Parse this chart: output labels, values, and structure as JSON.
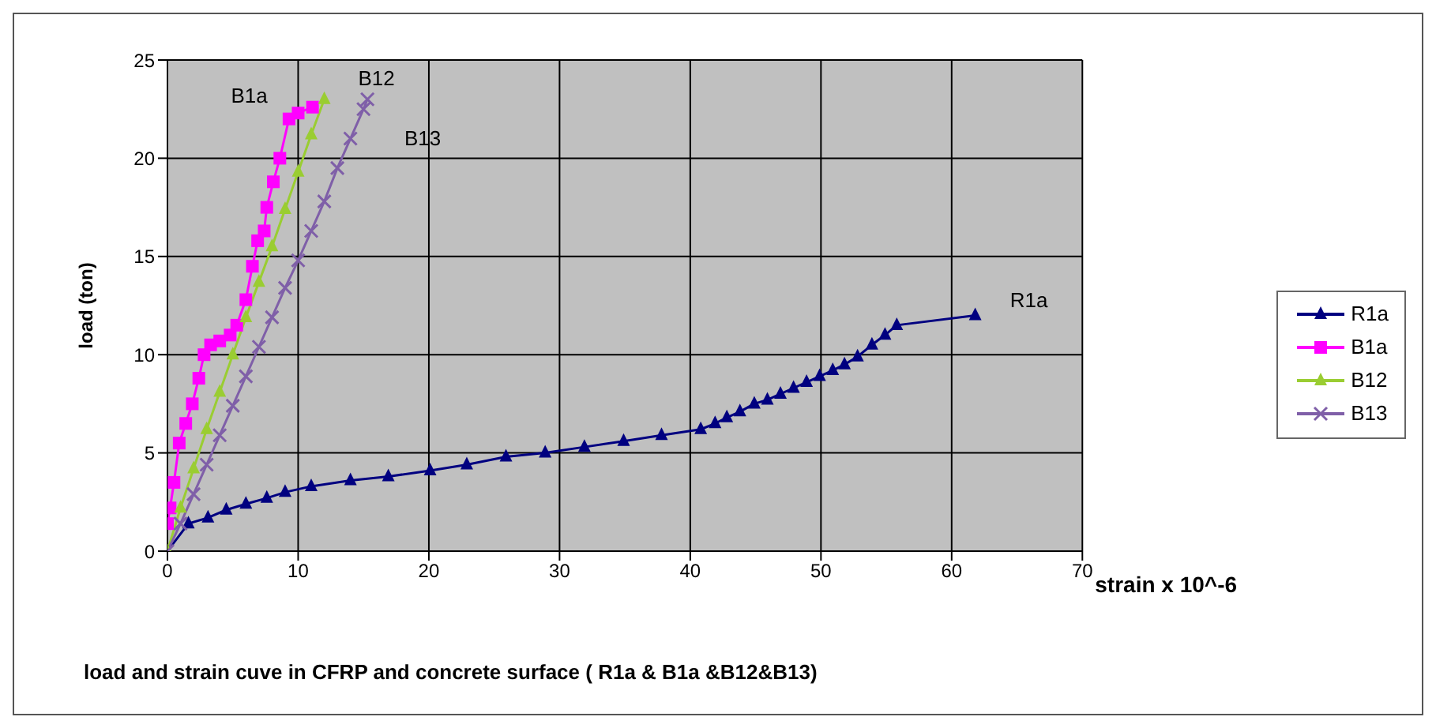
{
  "chart_data": {
    "type": "line",
    "title": "load and  strain cuve in CFRP and concrete surface  ( R1a & B1a &B12&B13)",
    "xlabel": "strain x 10^-6",
    "ylabel": "load (ton)",
    "xlim": [
      0,
      70
    ],
    "xticks": [
      0,
      10,
      20,
      30,
      40,
      50,
      60,
      70
    ],
    "ylim": [
      0,
      25
    ],
    "yticks": [
      0,
      5,
      10,
      15,
      20,
      25
    ],
    "grid": true,
    "legend": "right",
    "series": [
      {
        "name": "R1a",
        "color": "#000080",
        "marker": "triangle",
        "x": [
          0,
          1.6,
          3.1,
          4.5,
          6.0,
          7.6,
          9.0,
          11.0,
          14.0,
          16.9,
          20.1,
          22.9,
          25.9,
          28.9,
          31.9,
          34.9,
          37.8,
          40.8,
          41.9,
          42.8,
          43.8,
          44.9,
          45.9,
          46.9,
          47.9,
          48.9,
          49.9,
          50.9,
          51.8,
          52.8,
          53.9,
          54.9,
          55.8,
          61.8
        ],
        "values": [
          0,
          1.4,
          1.7,
          2.1,
          2.4,
          2.7,
          3.0,
          3.3,
          3.6,
          3.8,
          4.1,
          4.4,
          4.8,
          5.0,
          5.3,
          5.6,
          5.9,
          6.2,
          6.5,
          6.8,
          7.1,
          7.5,
          7.7,
          8.0,
          8.3,
          8.6,
          8.9,
          9.2,
          9.5,
          9.9,
          10.5,
          11.0,
          11.5,
          12.0
        ]
      },
      {
        "name": "B1a",
        "color": "#ff00ff",
        "marker": "square",
        "x": [
          0,
          0.2,
          0.5,
          0.9,
          1.4,
          1.9,
          2.4,
          2.8,
          3.3,
          4.0,
          4.8,
          5.3,
          6.0,
          6.5,
          6.9,
          7.4,
          7.6,
          8.1,
          8.6,
          9.3,
          10,
          11.1
        ],
        "values": [
          1.4,
          2.2,
          3.5,
          5.5,
          6.5,
          7.5,
          8.8,
          10,
          10.5,
          10.7,
          11.0,
          11.5,
          12.8,
          14.5,
          15.8,
          16.3,
          17.5,
          18.8,
          20,
          22,
          22.3,
          22.6
        ]
      },
      {
        "name": "B12",
        "color": "#9acd32",
        "marker": "triangle",
        "x": [
          0,
          1,
          2,
          3,
          4,
          5,
          6,
          7,
          8,
          9,
          10,
          11,
          12
        ],
        "values": [
          0,
          2.2,
          4.2,
          6.2,
          8.1,
          10,
          11.9,
          13.7,
          15.5,
          17.4,
          19.3,
          21.2,
          23
        ]
      },
      {
        "name": "B13",
        "color": "#7f5fa8",
        "marker": "cross",
        "x": [
          0,
          1,
          2,
          3,
          4,
          5,
          6,
          7,
          8,
          9,
          10,
          11,
          12,
          13,
          14,
          15,
          15.3
        ],
        "values": [
          0,
          1.4,
          2.9,
          4.4,
          5.9,
          7.4,
          8.9,
          10.4,
          11.9,
          13.4,
          14.8,
          16.3,
          17.8,
          19.5,
          21,
          22.5,
          23
        ]
      }
    ]
  }
}
